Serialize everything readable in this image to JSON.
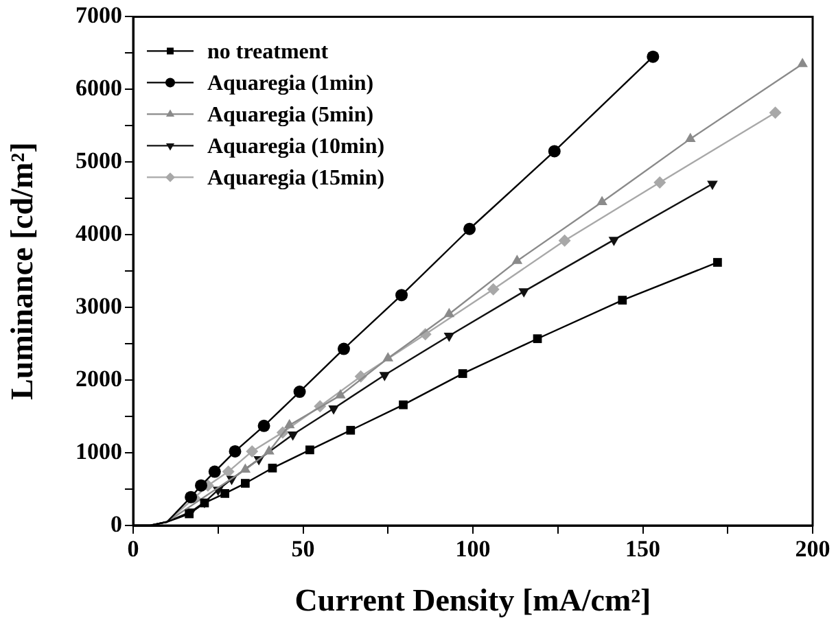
{
  "chart_data": {
    "type": "line",
    "xlabel": "Current Density [mA/cm²]",
    "ylabel": "Luminance [cd/m²]",
    "xlim": [
      0,
      200
    ],
    "ylim": [
      0,
      7000
    ],
    "xticks": [
      0,
      {
        "value": 25,
        "label": null
      },
      50,
      {
        "value": 75,
        "label": null
      },
      100,
      {
        "value": 125,
        "label": null
      },
      150,
      {
        "value": 175,
        "label": null
      },
      200
    ],
    "yticks": [
      0,
      {
        "value": 500,
        "label": null
      },
      1000,
      {
        "value": 1500,
        "label": null
      },
      2000,
      {
        "value": 2500,
        "label": null
      },
      3000,
      {
        "value": 3500,
        "label": null
      },
      4000,
      {
        "value": 4500,
        "label": null
      },
      5000,
      {
        "value": 5500,
        "label": null
      },
      6000,
      {
        "value": 6500,
        "label": null
      },
      7000
    ],
    "grid": false,
    "legend": "top left",
    "line_style": "solid",
    "series": [
      {
        "name": "no treatment",
        "color": "#000000",
        "marker": "square",
        "x": [
          0,
          5,
          10,
          16.5,
          21,
          27,
          33,
          41,
          52,
          64,
          79.5,
          97,
          119,
          144,
          172
        ],
        "values": [
          0,
          0,
          50,
          160,
          310,
          440,
          580,
          790,
          1040,
          1310,
          1660,
          2090,
          2570,
          3100,
          3620
        ]
      },
      {
        "name": "Aquaregia (1min)",
        "color": "#000000",
        "marker": "circle",
        "x": [
          0,
          5,
          10,
          17,
          20,
          24,
          30,
          38.5,
          49,
          62,
          79,
          99,
          124,
          153
        ],
        "values": [
          0,
          0,
          50,
          390,
          550,
          740,
          1020,
          1370,
          1840,
          2430,
          3170,
          4080,
          5150,
          6450
        ]
      },
      {
        "name": "Aquaregia (5min)",
        "color": "#8a8a8a",
        "marker": "triangle",
        "x": [
          0,
          5,
          10,
          33,
          40,
          46,
          61,
          75,
          93,
          113,
          138,
          164,
          197
        ],
        "values": [
          0,
          0,
          50,
          770,
          1020,
          1380,
          1790,
          2300,
          2910,
          3640,
          4450,
          5320,
          6350
        ]
      },
      {
        "name": "Aquaregia (10min)",
        "color": "#111111",
        "marker": "triangle_down",
        "x": [
          0,
          5,
          10,
          17,
          21,
          25,
          29,
          37,
          47,
          59,
          74,
          93,
          115,
          141.5,
          170.5
        ],
        "values": [
          0,
          0,
          50,
          190,
          320,
          490,
          640,
          910,
          1250,
          1610,
          2070,
          2610,
          3220,
          3930,
          4700
        ]
      },
      {
        "name": "Aquaregia (15min)",
        "color": "#a8a8a8",
        "marker": "diamond",
        "x": [
          0,
          5,
          10,
          18,
          22,
          28,
          35,
          44,
          55,
          67,
          86,
          106,
          127,
          155,
          189
        ],
        "values": [
          0,
          0,
          50,
          380,
          550,
          740,
          1020,
          1280,
          1640,
          2050,
          2630,
          3250,
          3920,
          4720,
          5680
        ]
      }
    ]
  }
}
